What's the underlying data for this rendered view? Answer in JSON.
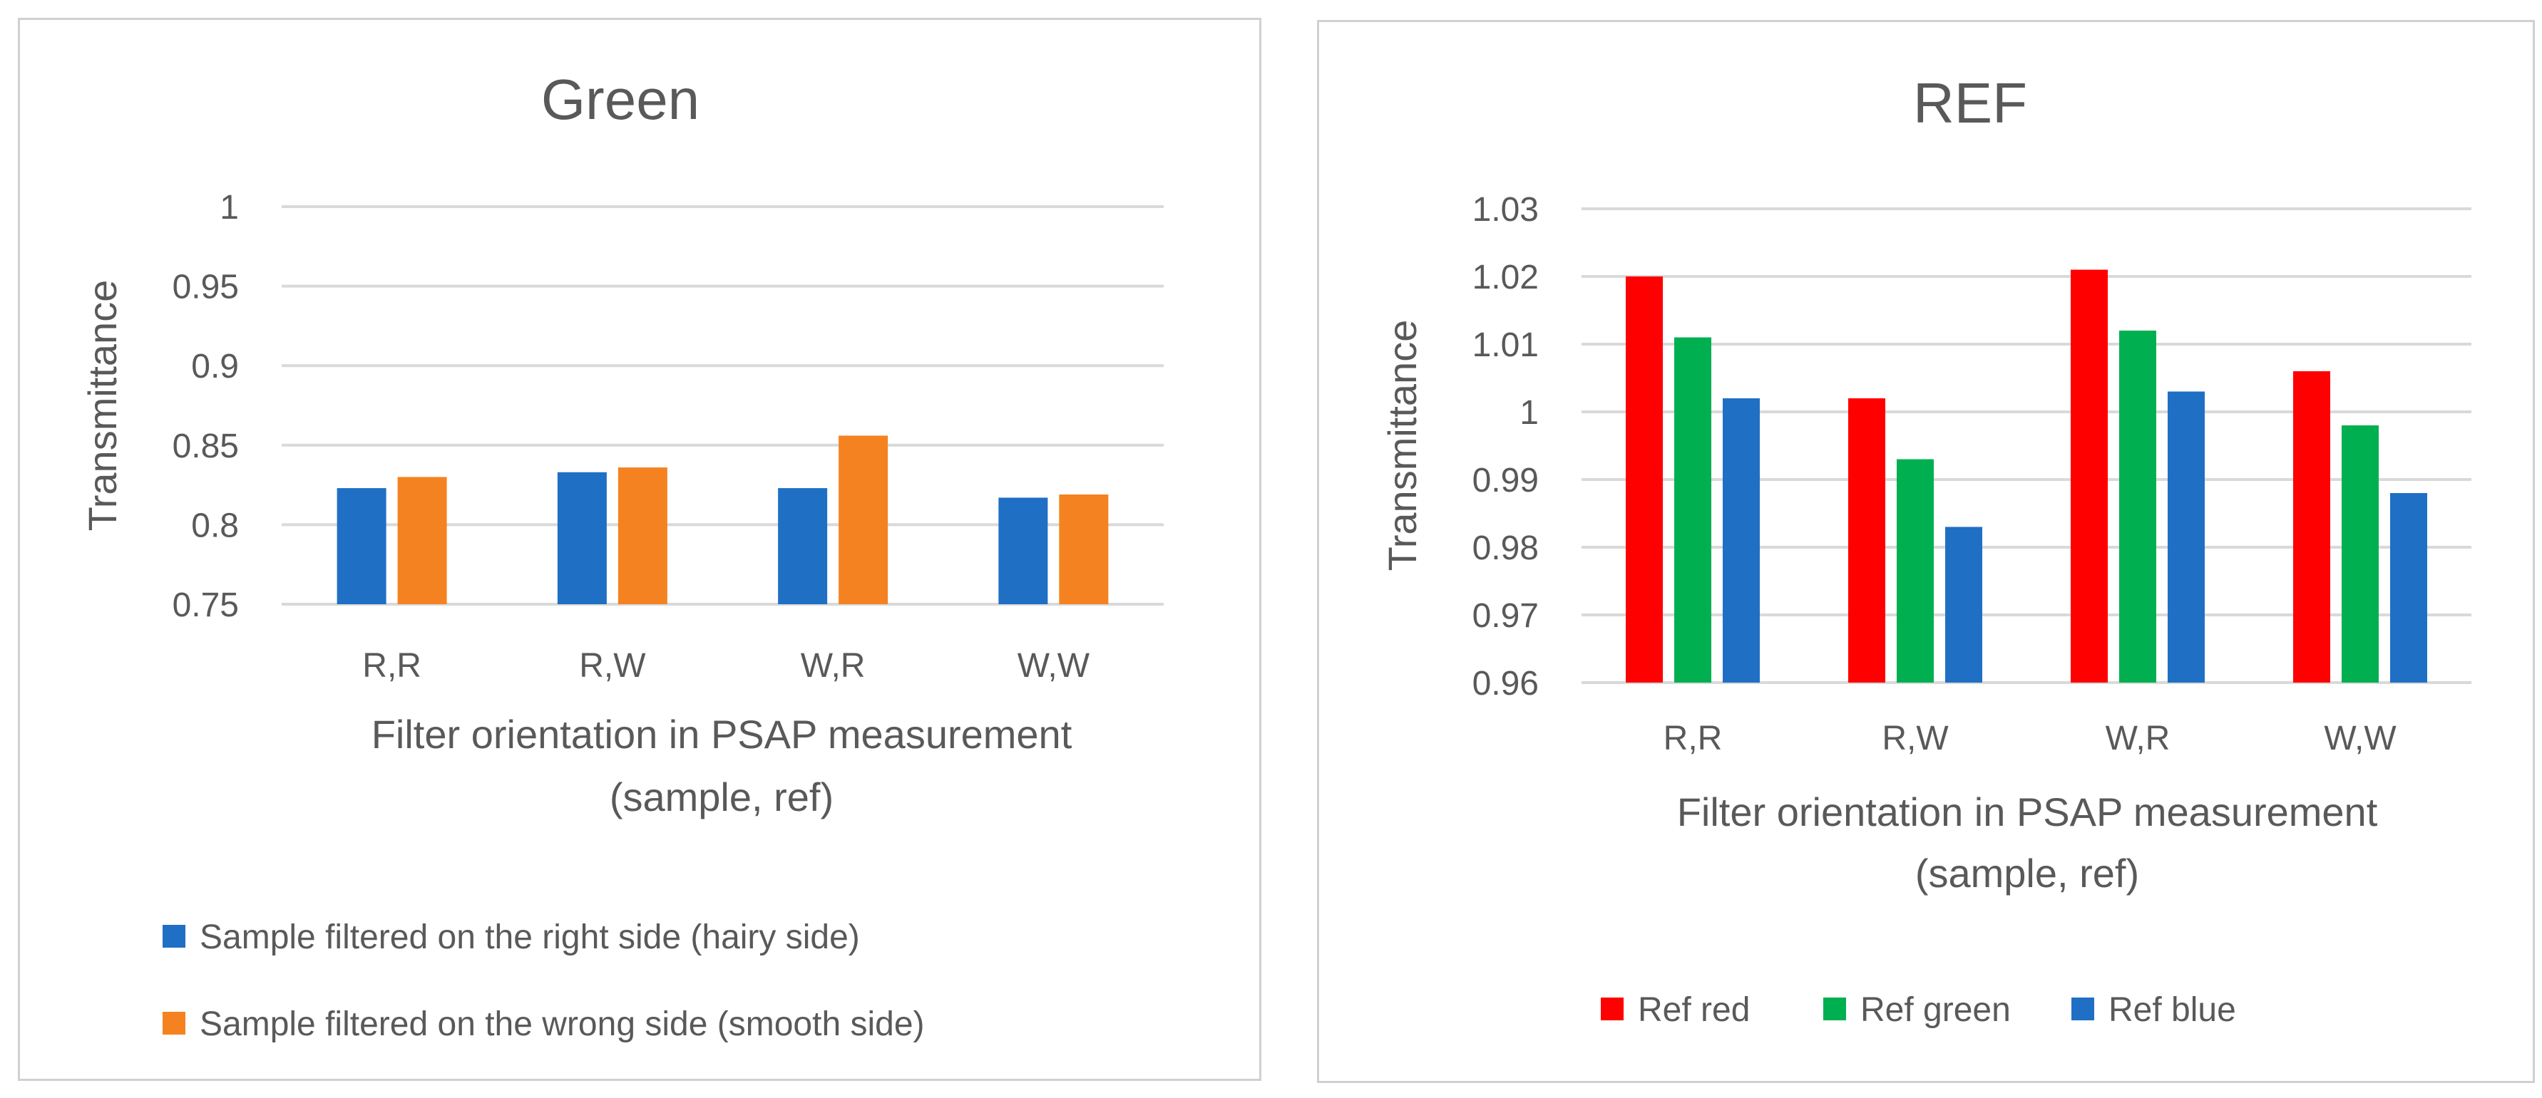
{
  "chart_data": [
    {
      "type": "bar",
      "title": "Green",
      "xlabel_lines": [
        "Filter orientation in PSAP measurement",
        "(sample, ref)"
      ],
      "ylabel": "Transmittance",
      "categories": [
        "R,R",
        "R,W",
        "W,R",
        "W,W"
      ],
      "ylim": [
        0.75,
        1
      ],
      "yticks": [
        0.75,
        0.8,
        0.85,
        0.9,
        0.95,
        1
      ],
      "ytick_labels": [
        "0.75",
        "0.8",
        "0.85",
        "0.9",
        "0.95",
        "1"
      ],
      "grid": true,
      "legend_position": "bottom",
      "series": [
        {
          "name": "Sample filtered on the right side (hairy side)",
          "color": "#1f6fc5",
          "values": [
            0.823,
            0.833,
            0.823,
            0.817
          ]
        },
        {
          "name": "Sample filtered on the wrong side (smooth side)",
          "color": "#f58220",
          "values": [
            0.83,
            0.836,
            0.856,
            0.819
          ]
        }
      ]
    },
    {
      "type": "bar",
      "title": "REF",
      "xlabel_lines": [
        "Filter orientation in PSAP measurement",
        "(sample, ref)"
      ],
      "ylabel": "Transmittance",
      "categories": [
        "R,R",
        "R,W",
        "W,R",
        "W,W"
      ],
      "ylim": [
        0.96,
        1.03
      ],
      "yticks": [
        0.96,
        0.97,
        0.98,
        0.99,
        1,
        1.01,
        1.02,
        1.03
      ],
      "ytick_labels": [
        "0.96",
        "0.97",
        "0.98",
        "0.99",
        "1",
        "1.01",
        "1.02",
        "1.03"
      ],
      "grid": true,
      "legend_position": "bottom",
      "series": [
        {
          "name": "Ref red",
          "color": "#ff0000",
          "values": [
            1.02,
            1.002,
            1.021,
            1.006
          ]
        },
        {
          "name": "Ref green",
          "color": "#00b050",
          "values": [
            1.011,
            0.993,
            1.012,
            0.998
          ]
        },
        {
          "name": "Ref blue",
          "color": "#1f6fc5",
          "values": [
            1.002,
            0.983,
            1.003,
            0.988
          ]
        }
      ]
    }
  ]
}
